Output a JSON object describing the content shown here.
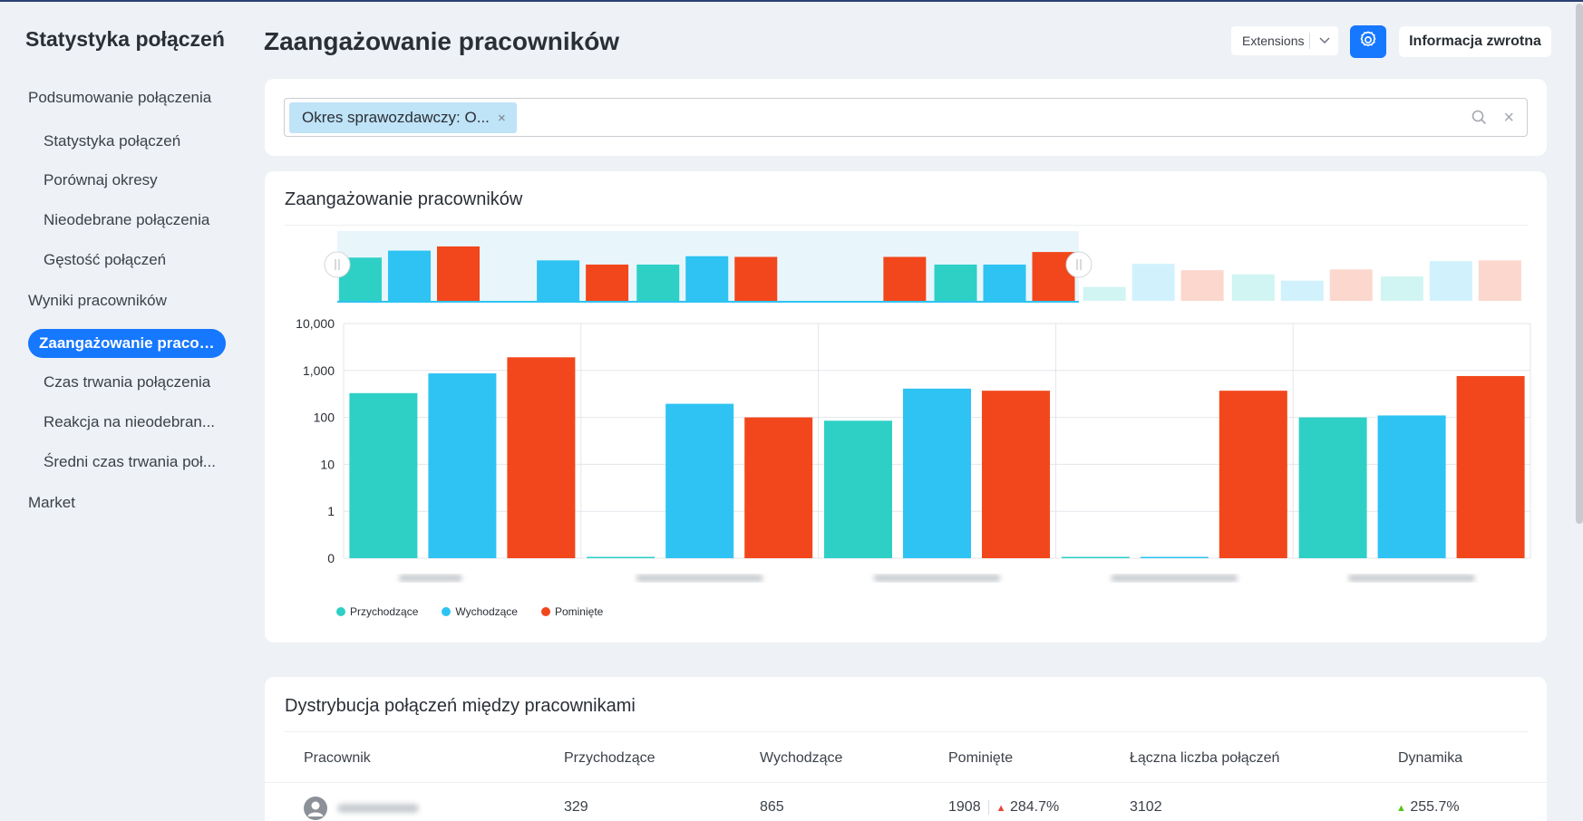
{
  "sidebar": {
    "title": "Statystyka połączeń",
    "items": [
      {
        "label": "Podsumowanie połączenia"
      },
      {
        "label": "Statystyka połączeń"
      },
      {
        "label": "Porównaj okresy"
      },
      {
        "label": "Nieodebrane połączenia"
      },
      {
        "label": "Gęstość połączeń"
      },
      {
        "label": "Wyniki pracowników"
      },
      {
        "label": "Zaangażowanie pracow..."
      },
      {
        "label": "Czas trwania połączenia"
      },
      {
        "label": "Reakcja na nieodebran..."
      },
      {
        "label": "Średni czas trwania poł..."
      },
      {
        "label": "Market"
      }
    ]
  },
  "header": {
    "title": "Zaangażowanie pracowników",
    "extensions_label": "Extensions",
    "feedback_label": "Informacja zwrotna"
  },
  "filter": {
    "tag_label": "Okres sprawozdawczy: O...",
    "tag_close": "×",
    "clear": "×"
  },
  "chart_card": {
    "title": "Zaangażowanie pracowników"
  },
  "chart_data": {
    "type": "bar",
    "title": "Zaangażowanie pracowników",
    "y_scale": "log",
    "yticks": [
      "10,000",
      "1,000",
      "100",
      "10",
      "1",
      "0"
    ],
    "ylim": [
      0,
      10000
    ],
    "categories": [
      "",
      "",
      "",
      "",
      ""
    ],
    "series": [
      {
        "name": "Przychodzące",
        "color": "#2ed0c6",
        "values": [
          329,
          0,
          85,
          0,
          100
        ]
      },
      {
        "name": "Wychodzące",
        "color": "#2ec3f2",
        "values": [
          865,
          195,
          410,
          0,
          110
        ]
      },
      {
        "name": "Pominięte",
        "color": "#f2471c",
        "values": [
          1908,
          100,
          370,
          370,
          760
        ]
      }
    ],
    "legend_position": "bottom-left",
    "overview_values": [
      [
        0.62,
        0.72,
        0.78
      ],
      [
        0,
        0.58,
        0.52
      ],
      [
        0.52,
        0.64,
        0.63
      ],
      [
        0,
        0,
        0.63
      ],
      [
        0.52,
        0.52,
        0.7
      ],
      [
        0.2,
        0.53,
        0.44
      ],
      [
        0.38,
        0.29,
        0.45
      ],
      [
        0.35,
        0.57,
        0.58
      ]
    ]
  },
  "table": {
    "title": "Dystrybucja połączeń między pracownikami",
    "columns": [
      "Pracownik",
      "Przychodzące",
      "Wychodzące",
      "Pominięte",
      "Łączna liczba połączeń",
      "Dynamika"
    ],
    "rows": [
      {
        "incoming": "329",
        "outgoing": "865",
        "missed": "1908",
        "missed_change": "284.7%",
        "total": "3102",
        "dynamics": "255.7%"
      }
    ]
  }
}
